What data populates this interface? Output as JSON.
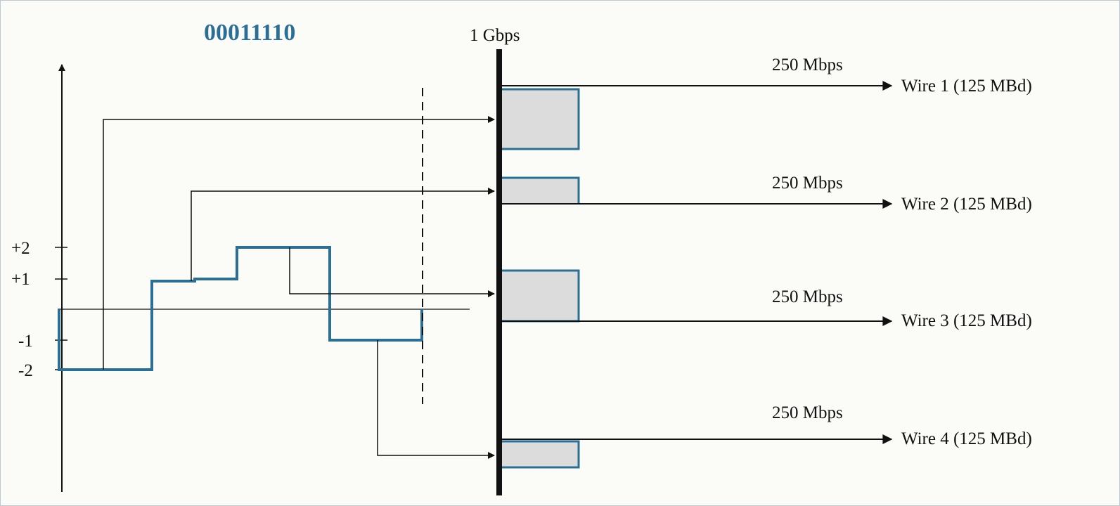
{
  "bits": "00011110",
  "input_rate": "1 Gbps",
  "levels": [
    "+2",
    "+1",
    "-1",
    "-2"
  ],
  "wires": [
    {
      "rate": "250 Mbps",
      "label": "Wire 1 (125 MBd)"
    },
    {
      "rate": "250 Mbps",
      "label": "Wire 2 (125 MBd)"
    },
    {
      "rate": "250 Mbps",
      "label": "Wire 3 (125 MBd)"
    },
    {
      "rate": "250 Mbps",
      "label": "Wire 4 (125 MBd)"
    }
  ],
  "colors": {
    "signal": "#2c6f96",
    "ink": "#111111",
    "pulse_fill": "#dcdcdc"
  }
}
